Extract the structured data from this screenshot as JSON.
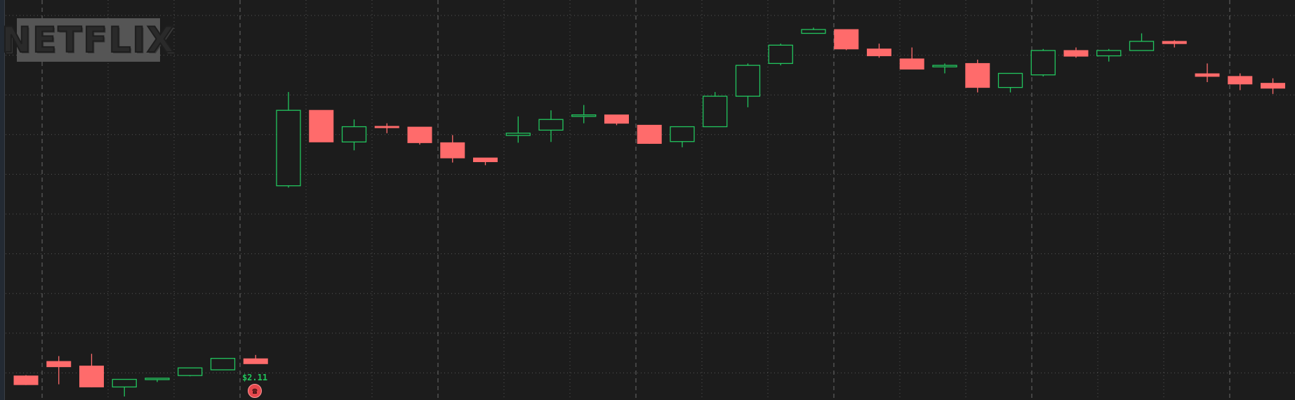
{
  "logo": {
    "text": "NETFLIX"
  },
  "earnings": {
    "price_label": "$2.11",
    "icon": "earnings-phone-icon"
  },
  "colors": {
    "up": "#22c55e",
    "down": "#ff6b6b",
    "background": "#1c1c1c",
    "grid_dotted": "#555555",
    "grid_dashed": "#6a6a6a"
  },
  "chart_data": {
    "type": "candlestick",
    "y_axis": "price",
    "ylim": [
      0,
      100
    ],
    "grid": true,
    "candles": [
      {
        "o": 5.4,
        "h": 5.6,
        "l": 3.0,
        "c": 3.1
      },
      {
        "o": 9.2,
        "h": 10.6,
        "l": 3.2,
        "c": 7.8
      },
      {
        "o": 8.0,
        "h": 11.2,
        "l": 2.4,
        "c": 2.5
      },
      {
        "o": 2.5,
        "h": 4.5,
        "l": 0.0,
        "c": 4.5
      },
      {
        "o": 4.5,
        "h": 4.8,
        "l": 3.8,
        "c": 4.8
      },
      {
        "o": 5.5,
        "h": 7.5,
        "l": 5.3,
        "c": 7.5
      },
      {
        "o": 7.0,
        "h": 10.0,
        "l": 6.9,
        "c": 10.0
      },
      {
        "o": 9.9,
        "h": 10.9,
        "l": 8.6,
        "c": 8.6
      },
      {
        "o": 55.3,
        "h": 79.9,
        "l": 54.8,
        "c": 75.1
      },
      {
        "o": 75.1,
        "h": 75.1,
        "l": 66.8,
        "c": 66.8
      },
      {
        "o": 66.8,
        "h": 72.7,
        "l": 64.6,
        "c": 70.8
      },
      {
        "o": 70.9,
        "h": 71.7,
        "l": 69.1,
        "c": 70.7
      },
      {
        "o": 70.7,
        "h": 70.7,
        "l": 66.1,
        "c": 66.6
      },
      {
        "o": 66.6,
        "h": 68.6,
        "l": 61.4,
        "c": 62.6
      },
      {
        "o": 62.6,
        "h": 62.6,
        "l": 60.7,
        "c": 61.6
      },
      {
        "o": 68.5,
        "h": 73.5,
        "l": 66.6,
        "c": 69.1
      },
      {
        "o": 69.9,
        "h": 75.1,
        "l": 66.8,
        "c": 72.7
      },
      {
        "o": 73.5,
        "h": 76.5,
        "l": 71.7,
        "c": 73.9
      },
      {
        "o": 73.9,
        "h": 73.9,
        "l": 71.2,
        "c": 71.7
      },
      {
        "o": 71.2,
        "h": 71.2,
        "l": 66.3,
        "c": 66.4
      },
      {
        "o": 66.9,
        "h": 70.9,
        "l": 65.4,
        "c": 70.8
      },
      {
        "o": 70.8,
        "h": 79.9,
        "l": 70.8,
        "c": 78.8
      },
      {
        "o": 78.8,
        "h": 87.4,
        "l": 75.9,
        "c": 86.9
      },
      {
        "o": 87.4,
        "h": 92.6,
        "l": 86.9,
        "c": 92.2
      },
      {
        "o": 95.3,
        "h": 96.8,
        "l": 95.3,
        "c": 96.3
      },
      {
        "o": 96.3,
        "h": 96.3,
        "l": 90.9,
        "c": 91.2
      },
      {
        "o": 91.2,
        "h": 92.6,
        "l": 88.9,
        "c": 89.4
      },
      {
        "o": 88.6,
        "h": 91.6,
        "l": 85.9,
        "c": 85.9
      },
      {
        "o": 86.5,
        "h": 87.4,
        "l": 84.8,
        "c": 86.9
      },
      {
        "o": 87.4,
        "h": 88.4,
        "l": 79.8,
        "c": 81.1
      },
      {
        "o": 81.1,
        "h": 84.8,
        "l": 79.8,
        "c": 84.8
      },
      {
        "o": 84.4,
        "h": 91.2,
        "l": 84.0,
        "c": 90.8
      },
      {
        "o": 90.8,
        "h": 91.6,
        "l": 88.9,
        "c": 89.3
      },
      {
        "o": 89.4,
        "h": 91.2,
        "l": 87.9,
        "c": 90.8
      },
      {
        "o": 90.8,
        "h": 95.3,
        "l": 90.8,
        "c": 93.2
      },
      {
        "o": 93.2,
        "h": 93.5,
        "l": 91.6,
        "c": 92.6
      },
      {
        "o": 84.7,
        "h": 87.4,
        "l": 82.5,
        "c": 84.0
      },
      {
        "o": 84.0,
        "h": 84.8,
        "l": 80.4,
        "c": 82.0
      },
      {
        "o": 82.2,
        "h": 83.5,
        "l": 79.4,
        "c": 80.9
      }
    ]
  }
}
